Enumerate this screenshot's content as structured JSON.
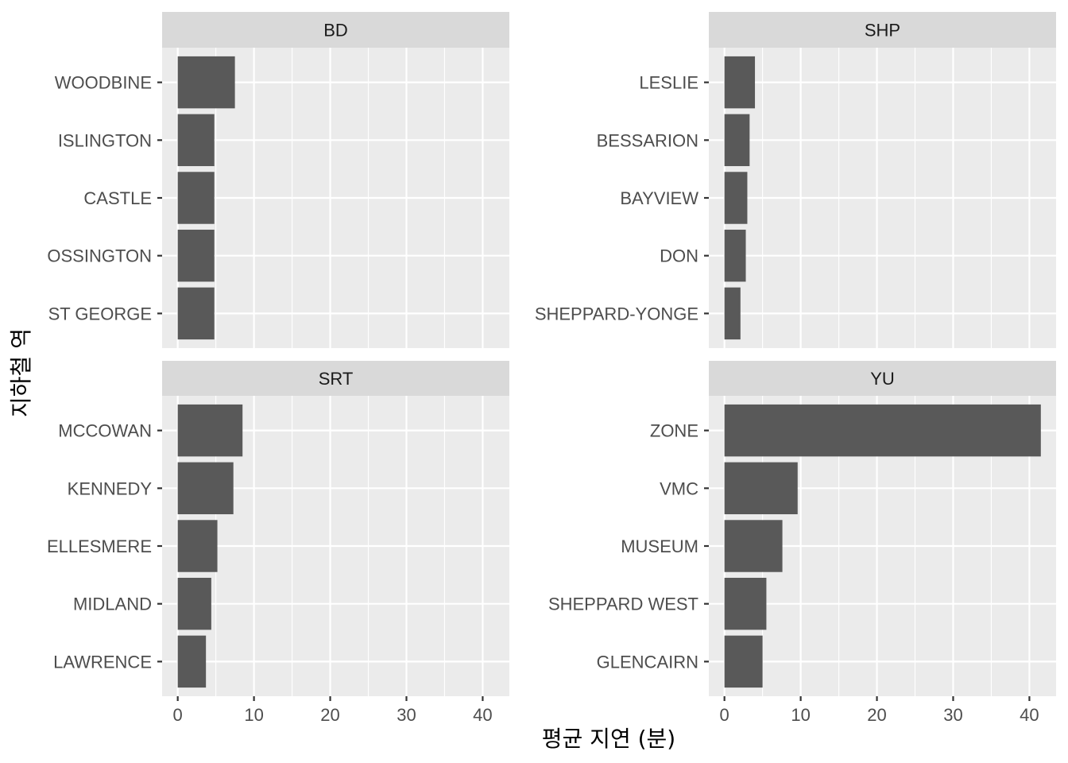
{
  "chart_data": {
    "type": "bar",
    "orientation": "horizontal",
    "facet_layout": "2x2",
    "xlabel": "평균 지연 (분)",
    "ylabel": "지하철 역",
    "xlim": [
      0,
      42
    ],
    "xticks": [
      0,
      10,
      20,
      30,
      40
    ],
    "grid": true,
    "colors": {
      "bar": "#595959",
      "panel": "#ebebeb",
      "strip": "#d9d9d9",
      "grid_major": "#ffffff"
    },
    "facets": [
      {
        "name": "BD",
        "categories": [
          "WOODBINE",
          "ISLINGTON",
          "CASTLE",
          "OSSINGTON",
          "ST GEORGE"
        ],
        "values": [
          7.5,
          4.8,
          4.8,
          4.8,
          4.8
        ]
      },
      {
        "name": "SHP",
        "categories": [
          "LESLIE",
          "BESSARION",
          "BAYVIEW",
          "DON",
          "SHEPPARD-YONGE"
        ],
        "values": [
          4.0,
          3.3,
          3.0,
          2.8,
          2.1
        ]
      },
      {
        "name": "SRT",
        "categories": [
          "MCCOWAN",
          "KENNEDY",
          "ELLESMERE",
          "MIDLAND",
          "LAWRENCE"
        ],
        "values": [
          8.5,
          7.3,
          5.2,
          4.4,
          3.7
        ]
      },
      {
        "name": "YU",
        "categories": [
          "ZONE",
          "VMC",
          "MUSEUM",
          "SHEPPARD WEST",
          "GLENCAIRN"
        ],
        "values": [
          41.5,
          9.6,
          7.6,
          5.5,
          5.0
        ]
      }
    ]
  }
}
